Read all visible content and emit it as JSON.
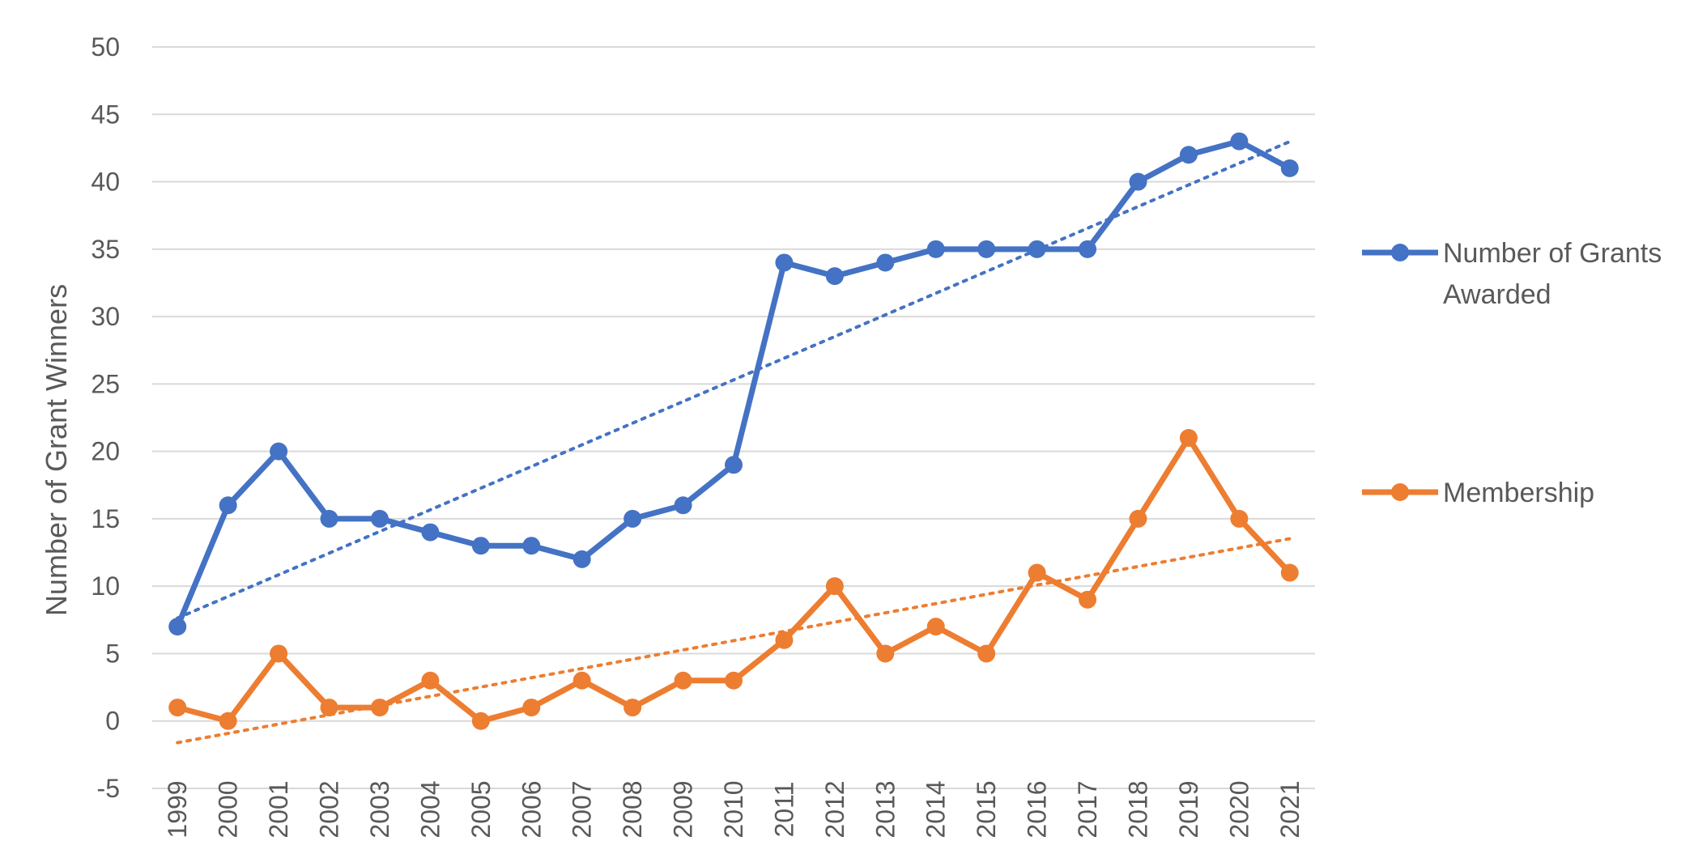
{
  "chart_data": {
    "type": "line",
    "title": "",
    "xlabel": "",
    "ylabel": "Number of Grant Winners",
    "ylim": [
      -5,
      50
    ],
    "ytick_step": 5,
    "grid": true,
    "legend_position": "right",
    "categories": [
      "1999",
      "2000",
      "2001",
      "2002",
      "2003",
      "2004",
      "2005",
      "2006",
      "2007",
      "2008",
      "2009",
      "2010",
      "2011",
      "2012",
      "2013",
      "2014",
      "2015",
      "2016",
      "2017",
      "2018",
      "2019",
      "2020",
      "2021"
    ],
    "series": [
      {
        "name": "Number of Grants Awarded",
        "legend_lines": [
          "Number of Grants",
          "Awarded"
        ],
        "color": "#4472C4",
        "values": [
          7,
          16,
          20,
          15,
          15,
          14,
          13,
          13,
          12,
          15,
          16,
          19,
          34,
          33,
          34,
          35,
          35,
          35,
          35,
          40,
          42,
          43,
          41
        ],
        "trendline": "linear"
      },
      {
        "name": "Membership",
        "legend_lines": [
          "Membership"
        ],
        "color": "#ED7D31",
        "values": [
          1,
          0,
          5,
          1,
          1,
          3,
          0,
          1,
          3,
          1,
          3,
          3,
          6,
          10,
          5,
          7,
          5,
          11,
          9,
          15,
          21,
          15,
          11
        ],
        "trendline": "linear"
      }
    ]
  }
}
